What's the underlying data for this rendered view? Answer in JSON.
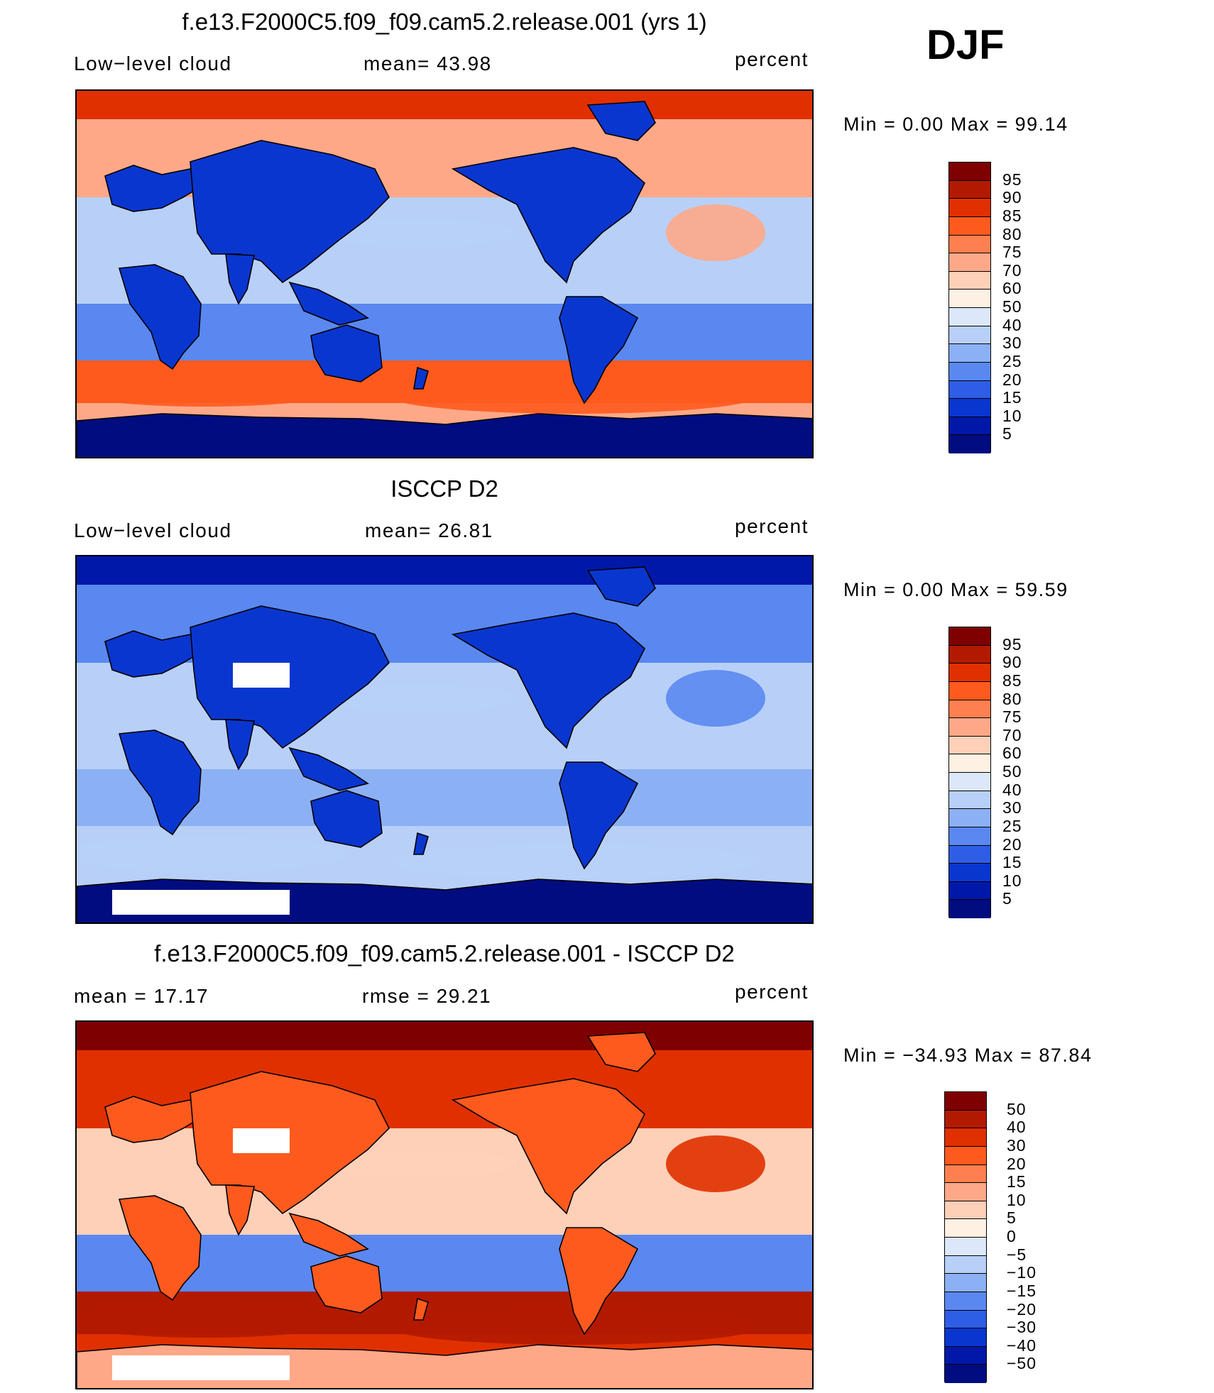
{
  "season": "DJF",
  "panels": [
    {
      "title": "f.e13.F2000C5.f09_f09.cam5.2.release.001 (yrs 1)",
      "left_label": "Low−level cloud",
      "mid_label": "mean=   43.98",
      "right_label": "percent",
      "minmax": "Min  =     0.00  Max  =    99.14",
      "colorbar": {
        "colors": [
          "#7f0000",
          "#b21a00",
          "#e03000",
          "#fe5a1e",
          "#fe8050",
          "#fea888",
          "#fed0b8",
          "#fff0e4",
          "#dce8fa",
          "#b8d0f8",
          "#8cb0f4",
          "#5a88f0",
          "#2e5ee6",
          "#0a36d0",
          "#0018a8",
          "#000c80"
        ],
        "labels": [
          "95",
          "90",
          "85",
          "80",
          "75",
          "70",
          "60",
          "50",
          "40",
          "30",
          "25",
          "20",
          "15",
          "10",
          "5"
        ]
      },
      "map": {
        "color_land": "#1a3ed8",
        "color_ocean_tropics": "#b0c8f4"
      }
    },
    {
      "title": "ISCCP D2",
      "left_label": "Low−level cloud",
      "mid_label": "mean=   26.81",
      "right_label": "percent",
      "minmax": "Min  =     0.00  Max  =    59.59",
      "colorbar": {
        "colors": [
          "#7f0000",
          "#b21a00",
          "#e03000",
          "#fe5a1e",
          "#fe8050",
          "#fea888",
          "#fed0b8",
          "#fff0e4",
          "#dce8fa",
          "#b8d0f8",
          "#8cb0f4",
          "#5a88f0",
          "#2e5ee6",
          "#0a36d0",
          "#0018a8",
          "#000c80"
        ],
        "labels": [
          "95",
          "90",
          "85",
          "80",
          "75",
          "70",
          "60",
          "50",
          "40",
          "30",
          "25",
          "20",
          "15",
          "10",
          "5"
        ]
      },
      "map": {
        "color_land": "#1a3ed8",
        "color_ocean_tropics": "#b8d0f6"
      }
    },
    {
      "title": "f.e13.F2000C5.f09_f09.cam5.2.release.001 - ISCCP D2",
      "left_label": "mean  =    17.17",
      "mid_label": "rmse  =    29.21",
      "right_label": "percent",
      "minmax": "Min  = −34.93  Max  =    87.84",
      "colorbar": {
        "colors": [
          "#7f0000",
          "#b21a00",
          "#e03000",
          "#fe5a1e",
          "#fe8050",
          "#fea888",
          "#fed0b8",
          "#fff0e4",
          "#dce8fa",
          "#b8d0f8",
          "#8cb0f4",
          "#5a88f0",
          "#2e5ee6",
          "#0a36d0",
          "#0018a8",
          "#000c80"
        ],
        "labels": [
          "50",
          "40",
          "30",
          "20",
          "15",
          "10",
          "5",
          "0",
          "−5",
          "−10",
          "−15",
          "−20",
          "−30",
          "−40",
          "−50"
        ]
      },
      "map": {
        "color_land": "#e03000",
        "color_ocean_tropics": "#fed0b8"
      }
    }
  ]
}
